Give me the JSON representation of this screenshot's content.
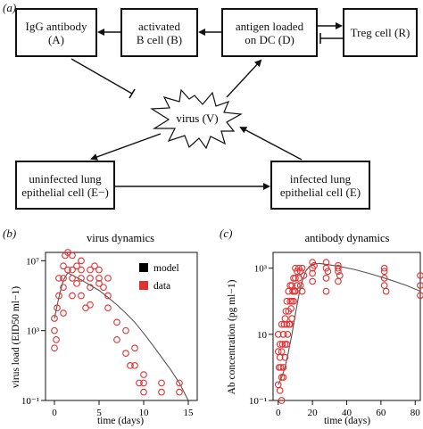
{
  "panel_labels": [
    "(a)",
    "(b)",
    "(c)"
  ],
  "diagram": {
    "nodes": {
      "A": {
        "lines": [
          "IgG antibody",
          "(A)"
        ]
      },
      "B": {
        "lines": [
          "activated",
          "B cell (B)"
        ]
      },
      "D": {
        "lines": [
          "antigen loaded",
          "on DC (D)"
        ]
      },
      "R": {
        "lines": [
          "Treg cell (R)"
        ]
      },
      "V": {
        "text": "virus (V)"
      },
      "Em": {
        "lines": [
          "uninfected lung",
          "epithelial cell (E−)"
        ]
      },
      "E": {
        "lines": [
          "infected lung",
          "epithelial cell (E)"
        ]
      }
    }
  },
  "legend": {
    "model_label": "model",
    "data_label": "data",
    "model_color": "#000000",
    "data_color": "#e03030"
  },
  "chart_data": [
    {
      "type": "scatter",
      "title": "virus dynamics",
      "xlabel": "time (days)",
      "ylabel": "virus load (EID50 ml−1)",
      "log_y": true,
      "xlim": [
        -1,
        16
      ],
      "ylim": [
        0.1,
        30000000
      ],
      "x_ticks": [
        0,
        5,
        10,
        15
      ],
      "y_ticks": [
        {
          "value": 0.1,
          "label": "10⁻¹"
        },
        {
          "value": 1000,
          "label": "10³"
        },
        {
          "value": 10000000,
          "label": "10⁷"
        }
      ],
      "series": [
        {
          "name": "model",
          "kind": "line",
          "color": "#555555",
          "x": [
            0,
            0.5,
            1,
            1.5,
            2,
            3,
            4,
            5,
            6,
            7,
            8,
            9,
            10,
            11,
            12,
            13,
            14,
            15
          ],
          "y": [
            5000,
            80000,
            800000,
            2000000,
            1500000,
            800000,
            400000,
            200000,
            80000,
            30000,
            10000,
            3000,
            700,
            150,
            30,
            6,
            1,
            0.1
          ]
        },
        {
          "name": "data",
          "kind": "points",
          "color": "#e03030",
          "x": [
            0,
            0,
            0,
            0.2,
            0.3,
            0.5,
            0.5,
            1,
            1,
            1,
            1,
            1.2,
            1.5,
            1.5,
            2,
            2,
            2,
            2,
            2.5,
            2.5,
            3,
            3,
            3,
            3,
            3.5,
            4,
            4,
            4,
            4,
            4.5,
            5,
            5,
            5,
            5.5,
            6,
            6,
            6,
            7,
            7,
            8,
            8,
            8.5,
            9,
            9,
            9.5,
            10,
            10,
            10,
            12,
            12,
            14,
            14
          ],
          "y": [
            100,
            1000,
            5000,
            300,
            20000,
            100000,
            1000000,
            5000000,
            1000000,
            300000,
            10000,
            20000000,
            30000000,
            3000000,
            20000000,
            3000000,
            1000000,
            100000,
            5000000,
            500000,
            10000000,
            3000000,
            1000000,
            100000,
            20000,
            3000000,
            1000000,
            300000,
            30000,
            5000000,
            3000000,
            1000000,
            500000,
            300000,
            1000000,
            100000,
            20000,
            3000,
            300,
            1000,
            50,
            10,
            100,
            10,
            1,
            3,
            1,
            0.3,
            0.3,
            1,
            0.3,
            1
          ]
        }
      ]
    },
    {
      "type": "scatter",
      "title": "antibody dynamics",
      "xlabel": "time (days)",
      "ylabel": "Ab concentration (pg ml−1)",
      "log_y": true,
      "xlim": [
        -3,
        83
      ],
      "ylim": [
        0.1,
        3000
      ],
      "x_ticks": [
        0,
        20,
        40,
        60,
        80
      ],
      "y_ticks": [
        {
          "value": 0.1,
          "label": "10⁻¹"
        },
        {
          "value": 10,
          "label": "10"
        },
        {
          "value": 1000,
          "label": "10³"
        }
      ],
      "series": [
        {
          "name": "model",
          "kind": "line",
          "color": "#555555",
          "x": [
            0,
            2,
            4,
            6,
            8,
            10,
            12,
            14,
            16,
            18,
            20,
            24,
            28,
            35,
            45,
            55,
            65,
            75,
            83
          ],
          "y": [
            0.3,
            0.5,
            1,
            3,
            10,
            40,
            150,
            400,
            800,
            1100,
            1300,
            1400,
            1300,
            1150,
            900,
            650,
            450,
            300,
            200
          ]
        },
        {
          "name": "data",
          "kind": "points",
          "color": "#e03030",
          "x": [
            0,
            0,
            0,
            0.5,
            1,
            1,
            1,
            1.5,
            2,
            2,
            2,
            2,
            2.5,
            3,
            3,
            3,
            3.5,
            4,
            4,
            4,
            4.5,
            5,
            5,
            5,
            5.5,
            6,
            6,
            6.5,
            7,
            7,
            7,
            7.5,
            8,
            8,
            8,
            8.5,
            9,
            9,
            9.5,
            10,
            10,
            10,
            11,
            11,
            12,
            12,
            13,
            13,
            14,
            14,
            15,
            20,
            20,
            20,
            20,
            21,
            28,
            28,
            28,
            28,
            29,
            35,
            35,
            35,
            35,
            36,
            62,
            62,
            62,
            62,
            63,
            83,
            83,
            83
          ],
          "y": [
            3,
            10,
            0.3,
            1,
            5,
            0.2,
            2,
            1,
            20,
            0.5,
            3,
            0.1,
            5,
            10,
            1,
            0.5,
            20,
            30,
            5,
            2,
            50,
            20,
            5,
            100,
            10,
            50,
            200,
            20,
            100,
            300,
            20,
            60,
            300,
            100,
            30,
            200,
            500,
            100,
            200,
            500,
            1000,
            200,
            300,
            800,
            500,
            1000,
            800,
            300,
            1000,
            200,
            600,
            1500,
            1000,
            700,
            400,
            1200,
            1500,
            1000,
            500,
            200,
            800,
            1200,
            800,
            400,
            1000,
            600,
            800,
            500,
            300,
            1000,
            200,
            600,
            300,
            150
          ]
        }
      ]
    }
  ]
}
